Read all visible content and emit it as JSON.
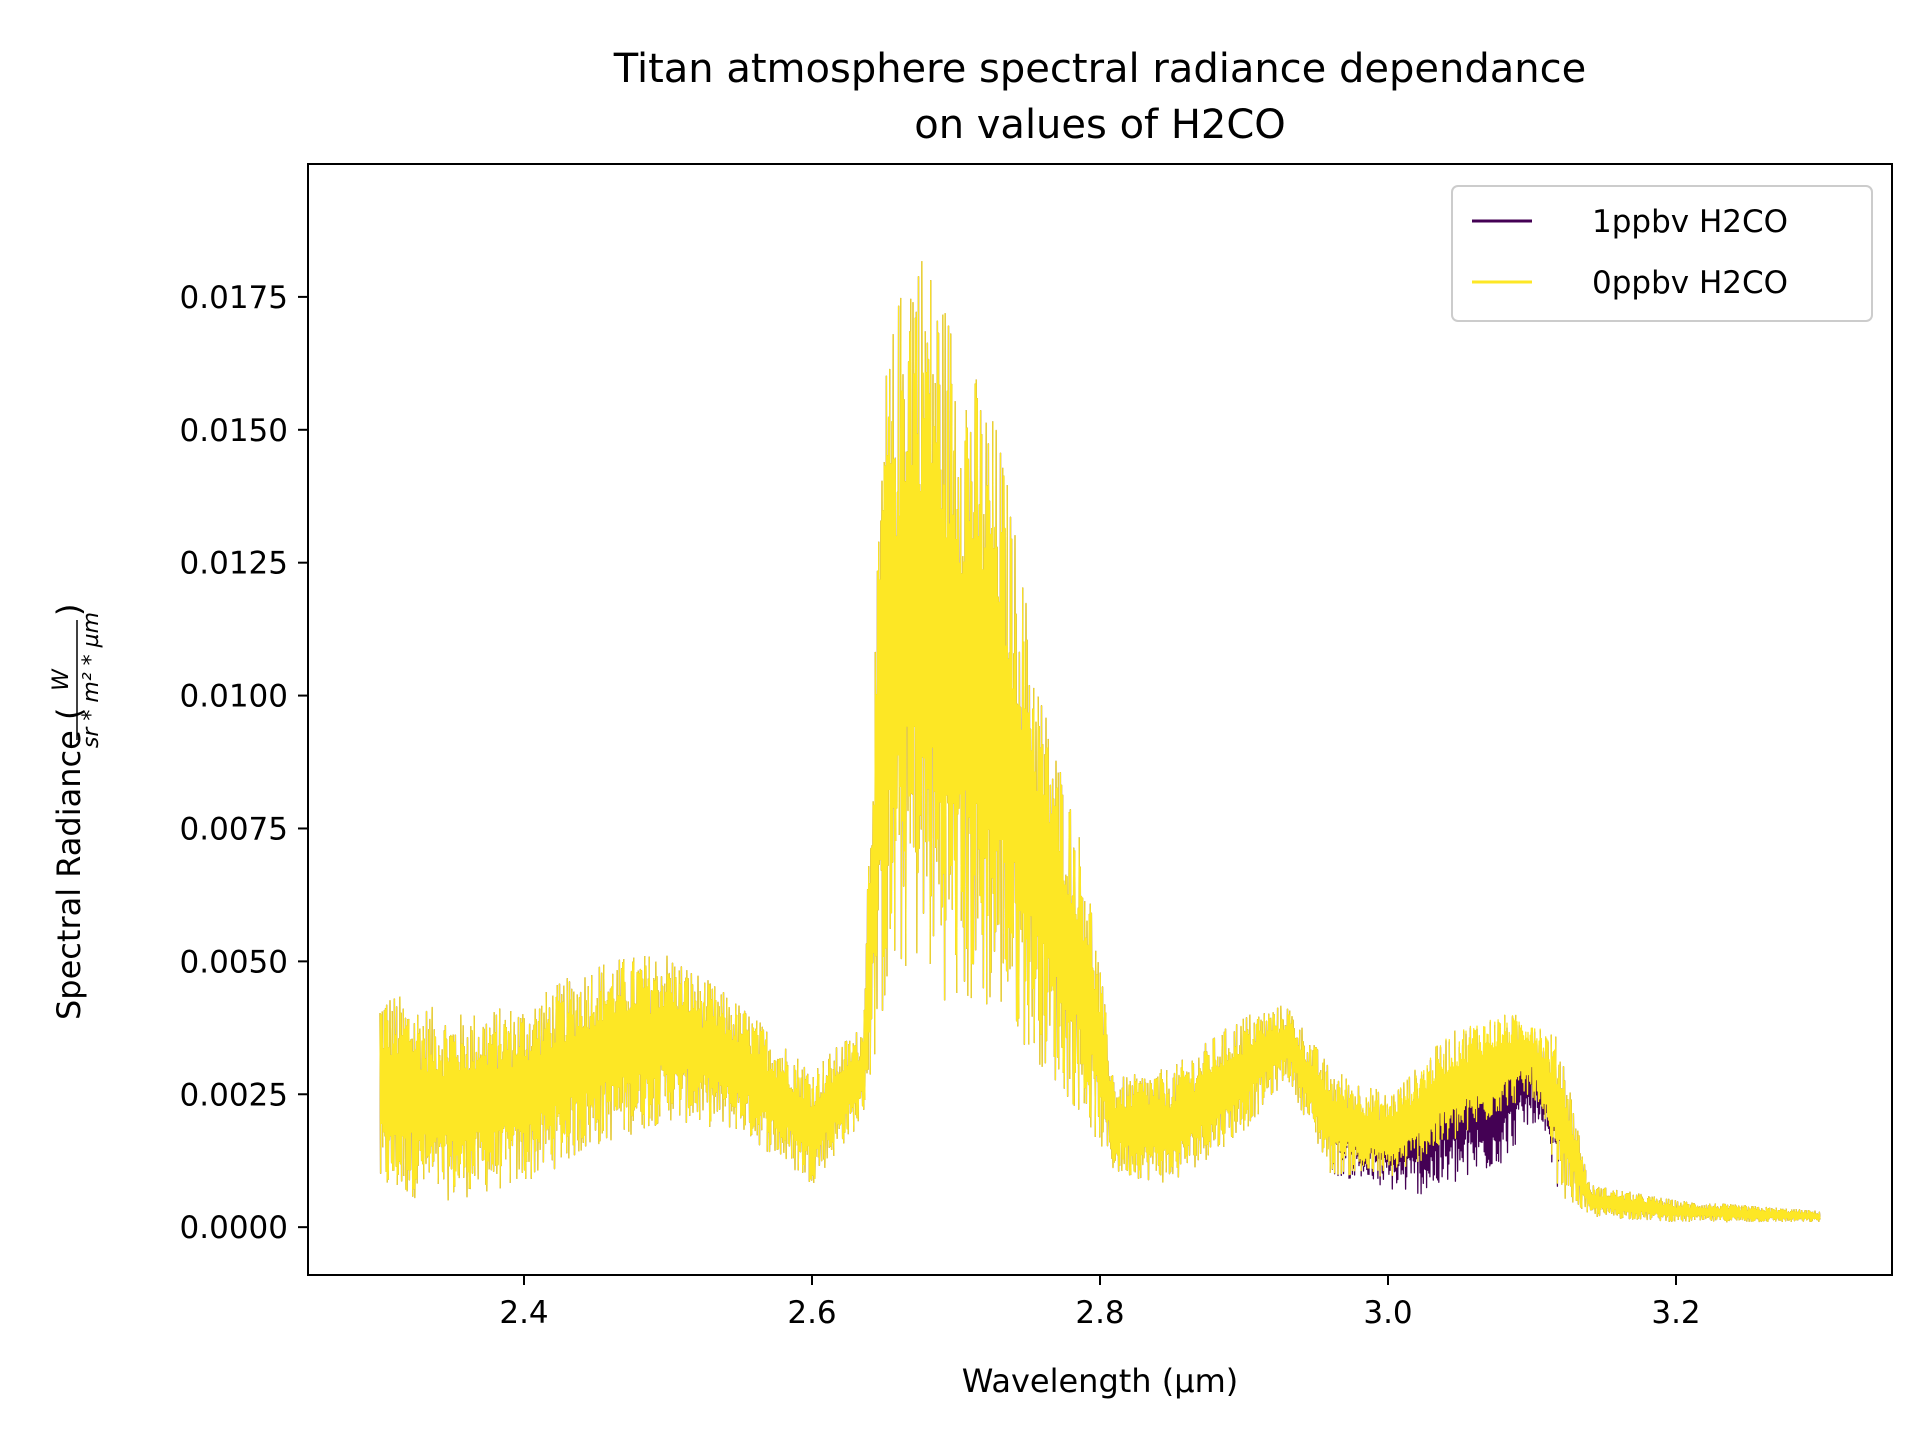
{
  "chart_data": {
    "type": "line",
    "title": [
      "Titan atmosphere spectral radiance dependance",
      "on values of H2CO"
    ],
    "xlabel": "Wavelength (µm)",
    "ylabel": {
      "text": "Spectral Radiance (",
      "numerator": "W",
      "denominator": "sr * m² * µm",
      "close": ")"
    },
    "xlim": [
      2.25,
      3.35
    ],
    "ylim": [
      -0.0009,
      0.02
    ],
    "xticks": [
      2.4,
      2.6,
      2.8,
      3.0,
      3.2
    ],
    "xtick_labels": [
      "2.4",
      "2.6",
      "2.8",
      "3.0",
      "3.2"
    ],
    "yticks": [
      0.0,
      0.0025,
      0.005,
      0.0075,
      0.01,
      0.0125,
      0.015,
      0.0175
    ],
    "ytick_labels": [
      "0.0000",
      "0.0025",
      "0.0050",
      "0.0075",
      "0.0100",
      "0.0125",
      "0.0150",
      "0.0175"
    ],
    "grid": false,
    "legend_position": "top-right",
    "series": [
      {
        "name": "1ppbv H2CO",
        "color": "#440154",
        "envelope": {
          "x": [
            2.3,
            2.35,
            2.4,
            2.45,
            2.5,
            2.55,
            2.6,
            2.635,
            2.65,
            2.67,
            2.7,
            2.73,
            2.76,
            2.79,
            2.81,
            2.85,
            2.9,
            2.93,
            2.96,
            3.0,
            3.02,
            3.04,
            3.06,
            3.08,
            3.1,
            3.12,
            3.14,
            3.2,
            3.25,
            3.3
          ],
          "upper": [
            0.0045,
            0.004,
            0.0042,
            0.005,
            0.0052,
            0.0042,
            0.003,
            0.0038,
            0.016,
            0.019,
            0.017,
            0.015,
            0.01,
            0.007,
            0.0028,
            0.003,
            0.004,
            0.0042,
            0.003,
            0.0025,
            0.003,
            0.0036,
            0.0039,
            0.004,
            0.004,
            0.0035,
            0.0008,
            0.0005,
            0.0004,
            0.0003
          ],
          "lower": [
            0.0006,
            0.0005,
            0.0008,
            0.0015,
            0.002,
            0.0018,
            0.0008,
            0.002,
            0.004,
            0.005,
            0.004,
            0.004,
            0.003,
            0.002,
            0.001,
            0.0008,
            0.0018,
            0.0028,
            0.001,
            0.0007,
            0.0006,
            0.0007,
            0.0009,
            0.0012,
            0.002,
            0.0006,
            0.0002,
            0.0001,
            0.0001,
            0.0001
          ]
        }
      },
      {
        "name": "0ppbv H2CO",
        "color": "#fde725",
        "envelope": {
          "x": [
            2.3,
            2.35,
            2.4,
            2.45,
            2.5,
            2.55,
            2.6,
            2.635,
            2.65,
            2.67,
            2.7,
            2.73,
            2.76,
            2.79,
            2.81,
            2.85,
            2.9,
            2.93,
            2.96,
            3.0,
            3.02,
            3.04,
            3.06,
            3.08,
            3.1,
            3.12,
            3.14,
            3.2,
            3.25,
            3.3
          ],
          "upper": [
            0.0045,
            0.004,
            0.0042,
            0.005,
            0.0052,
            0.0042,
            0.003,
            0.0038,
            0.016,
            0.019,
            0.017,
            0.015,
            0.01,
            0.007,
            0.0028,
            0.003,
            0.004,
            0.0042,
            0.003,
            0.0025,
            0.003,
            0.0036,
            0.0039,
            0.004,
            0.004,
            0.0035,
            0.0008,
            0.0005,
            0.0004,
            0.0003
          ],
          "lower": [
            0.0006,
            0.0005,
            0.0008,
            0.0015,
            0.002,
            0.0018,
            0.0008,
            0.002,
            0.004,
            0.005,
            0.004,
            0.004,
            0.003,
            0.002,
            0.001,
            0.0008,
            0.0018,
            0.0028,
            0.001,
            0.0009,
            0.0012,
            0.0015,
            0.0018,
            0.0022,
            0.0025,
            0.0006,
            0.0002,
            0.0001,
            0.0001,
            0.0001
          ]
        }
      }
    ]
  }
}
